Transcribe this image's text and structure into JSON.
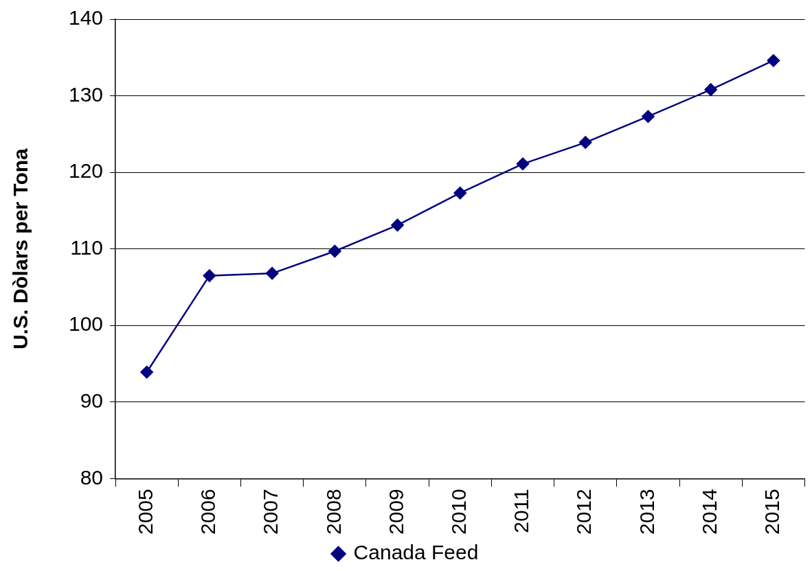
{
  "chart_data": {
    "type": "line",
    "ylabel": "U.S. Dòlars per Tona",
    "categories": [
      "2005",
      "2006",
      "2007",
      "2008",
      "2009",
      "2010",
      "2011",
      "2012",
      "2013",
      "2014",
      "2015"
    ],
    "series": [
      {
        "name": "Canada Feed",
        "color": "#000080",
        "values": [
          93.9,
          106.5,
          106.8,
          109.7,
          113.1,
          117.3,
          121.1,
          123.9,
          127.3,
          130.8,
          134.6
        ]
      }
    ],
    "ylim": [
      80,
      140
    ],
    "yticks": [
      80,
      90,
      100,
      110,
      120,
      130,
      140
    ],
    "grid": "y",
    "legend": "bottom",
    "marker": "diamond",
    "line_style": "solid"
  }
}
